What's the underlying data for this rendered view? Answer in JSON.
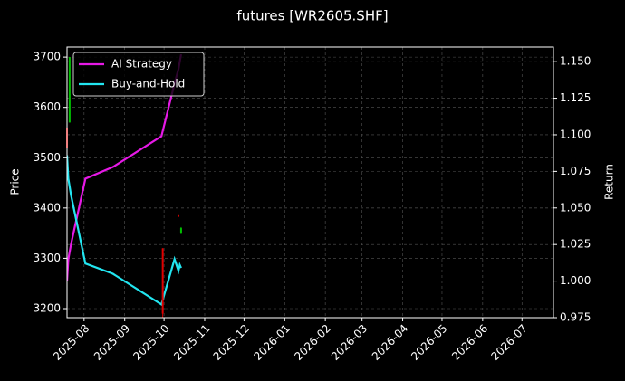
{
  "chart_data": {
    "type": "candlestick",
    "title": "futures [WR2605.SHF]",
    "y_label": "Price",
    "y2_label": "Return",
    "xlim": [
      "2025-07-19",
      "2026-07-25"
    ],
    "xticks": [
      {
        "value": "2025-08-01",
        "label": "2025-08"
      },
      {
        "value": "2025-09-01",
        "label": "2025-09"
      },
      {
        "value": "2025-10-01",
        "label": "2025-10"
      },
      {
        "value": "2025-11-01",
        "label": "2025-11"
      },
      {
        "value": "2025-12-01",
        "label": "2025-12"
      },
      {
        "value": "2026-01-01",
        "label": "2026-01"
      },
      {
        "value": "2026-02-01",
        "label": "2026-02"
      },
      {
        "value": "2026-03-01",
        "label": "2026-03"
      },
      {
        "value": "2026-04-01",
        "label": "2026-04"
      },
      {
        "value": "2026-05-01",
        "label": "2026-05"
      },
      {
        "value": "2026-06-01",
        "label": "2026-06"
      },
      {
        "value": "2026-07-01",
        "label": "2026-07"
      }
    ],
    "ylim": [
      3182,
      3720
    ],
    "yticks": [
      3200,
      3300,
      3400,
      3500,
      3600,
      3700
    ],
    "y2lim": [
      0.975,
      1.16
    ],
    "y2ticks": [
      0.975,
      {
        "value": 1,
        "label": "1.000"
      },
      1.025,
      {
        "value": 1.05,
        "label": "1.050"
      },
      1.075,
      {
        "value": 1.1,
        "label": "1.100"
      },
      1.125,
      {
        "value": 1.15,
        "label": "1.150"
      }
    ],
    "grid": true,
    "legend": "upper left",
    "up_color": "#00c000",
    "down_color": "#e00000",
    "candles": {
      "x": [
        "2025-07-19",
        "2025-07-21",
        "2025-09-30",
        "2025-10-12",
        "2025-10-14"
      ],
      "open": [
        3560,
        3570,
        3320,
        3385,
        3350
      ],
      "high": [
        3600,
        3700,
        3320,
        3386,
        3362
      ],
      "low": [
        3500,
        3570,
        3182,
        3382,
        3348
      ],
      "close": [
        3520,
        3700,
        3190,
        3383,
        3360
      ]
    },
    "x": [
      "2025-07-19",
      "2025-07-20",
      "2025-07-22",
      "2025-08-02",
      "2025-08-23",
      "2025-09-29",
      "2025-10-09",
      "2025-10-12",
      "2025-10-13",
      "2025-10-14"
    ],
    "series": [
      {
        "name": "AI Strategy",
        "color": "#e619e6",
        "axis": "y2",
        "values": [
          1.0,
          1.015,
          1.025,
          1.07,
          1.078,
          1.099,
          1.135,
          1.145,
          1.15,
          1.155
        ]
      },
      {
        "name": "Buy-and-Hold",
        "color": "#22e5f0",
        "axis": "y2",
        "values": [
          1.086,
          1.07,
          1.059,
          1.012,
          1.005,
          0.984,
          1.015,
          1.007,
          1.011,
          1.009
        ]
      }
    ]
  }
}
